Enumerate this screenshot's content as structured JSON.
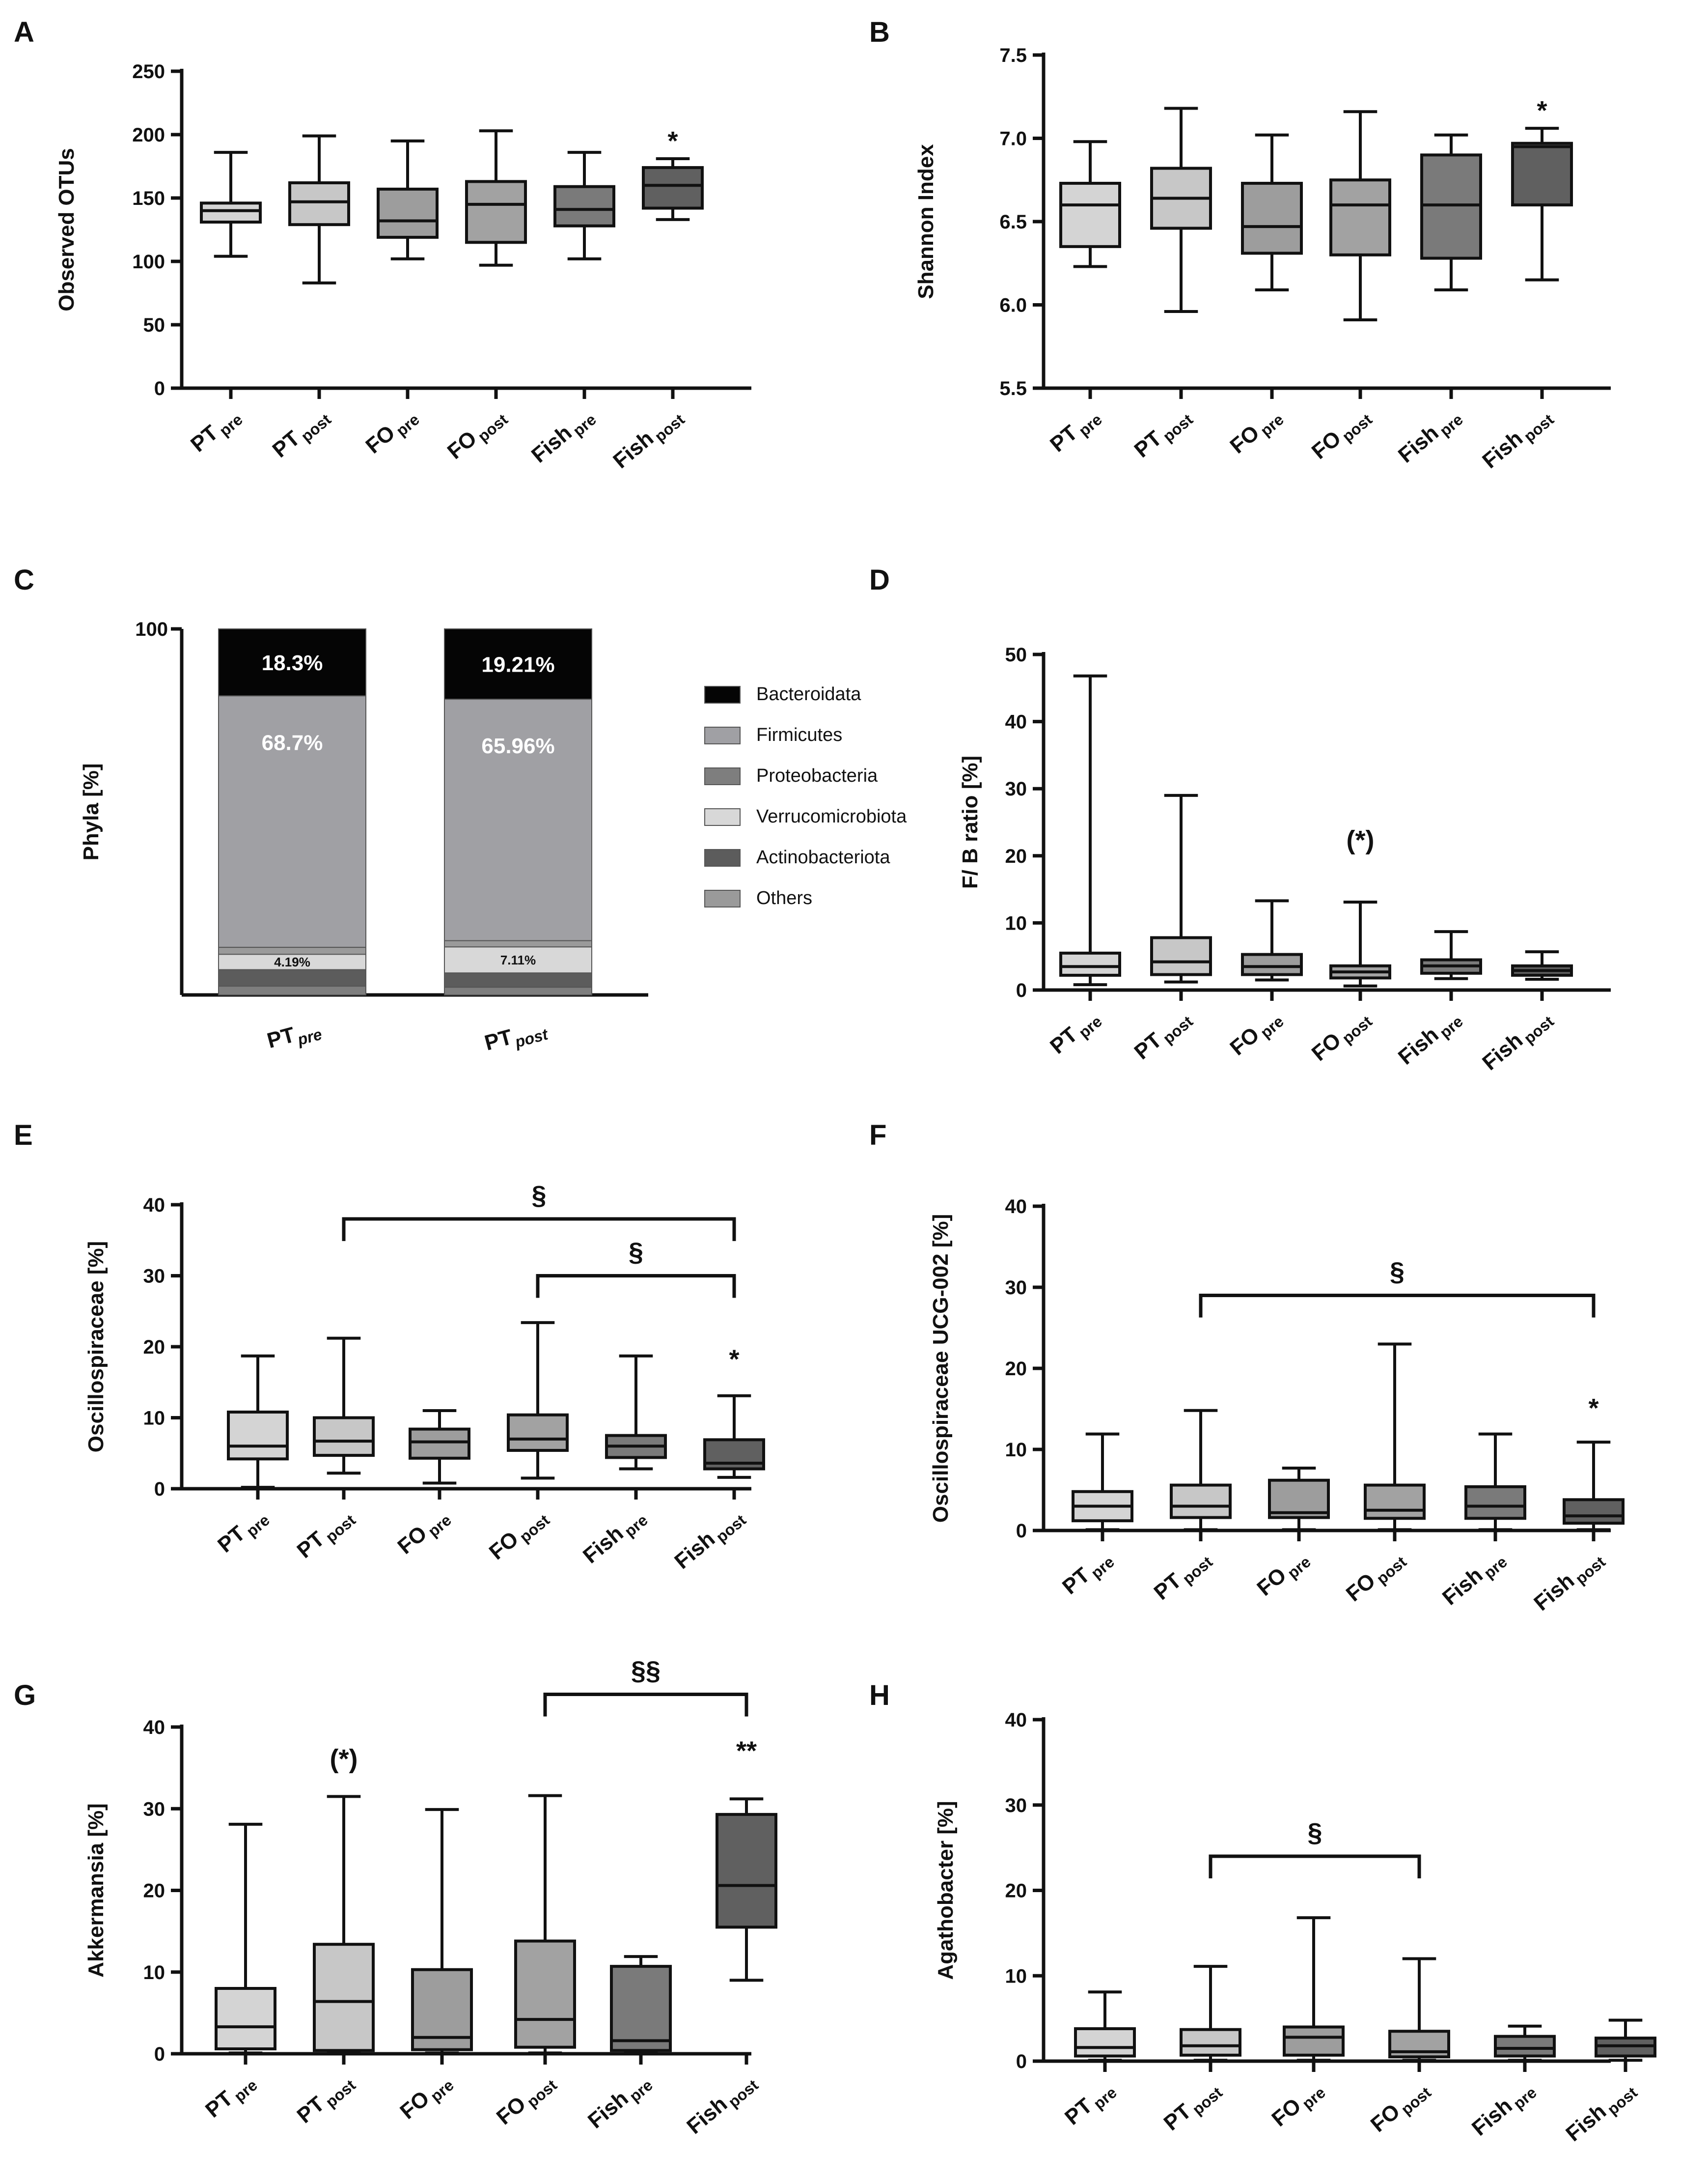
{
  "colors": {
    "pre_pt": "#d4d4d4",
    "post_pt": "#c7c7c7",
    "fo_pre": "#9d9d9d",
    "fo_post": "#a2a2a2",
    "fish_pre": "#7a7a7a",
    "fish_post": "#606060",
    "bacteroidata": "#050505",
    "firmicutes": "#a0a0a4",
    "proteobacteria": "#7e7e7e",
    "verrucomicrobiota": "#d8d8d8",
    "actinobacteriota": "#5c5c5c",
    "others": "#9a9a9a"
  },
  "groups": [
    {
      "main": "PT",
      "sub": "pre"
    },
    {
      "main": "PT",
      "sub": "post"
    },
    {
      "main": "FO",
      "sub": "pre"
    },
    {
      "main": "FO",
      "sub": "post"
    },
    {
      "main": "Fish",
      "sub": "pre"
    },
    {
      "main": "Fish",
      "sub": "post"
    }
  ],
  "chart_data": [
    {
      "panel": "A",
      "type": "boxplot",
      "ylabel": "Observed OTUs",
      "ylim": [
        0,
        250
      ],
      "yticks": [
        "0",
        "50",
        "100",
        "150",
        "200",
        "250"
      ],
      "boxes": [
        {
          "group": "PT pre",
          "min": 104,
          "q1": 131,
          "median": 140,
          "q3": 146,
          "max": 186
        },
        {
          "group": "PT post",
          "min": 83,
          "q1": 129,
          "median": 147,
          "q3": 162,
          "max": 199
        },
        {
          "group": "FO pre",
          "min": 102,
          "q1": 119,
          "median": 132,
          "q3": 157,
          "max": 195
        },
        {
          "group": "FO post",
          "min": 97,
          "q1": 115,
          "median": 145,
          "q3": 163,
          "max": 203
        },
        {
          "group": "Fish pre",
          "min": 102,
          "q1": 128,
          "median": 141,
          "q3": 159,
          "max": 186
        },
        {
          "group": "Fish post",
          "min": 133,
          "q1": 142,
          "median": 160,
          "q3": 174,
          "max": 181
        }
      ],
      "annotations": [
        {
          "group_index": 5,
          "text": "*"
        }
      ],
      "brackets": []
    },
    {
      "panel": "B",
      "type": "boxplot",
      "ylabel": "Shannon Index",
      "ylim": [
        5.5,
        7.5
      ],
      "yticks": [
        "5.5",
        "6.0",
        "6.5",
        "7.0",
        "7.5"
      ],
      "boxes": [
        {
          "group": "PT pre",
          "min": 6.23,
          "q1": 6.35,
          "median": 6.6,
          "q3": 6.73,
          "max": 6.98
        },
        {
          "group": "PT post",
          "min": 5.96,
          "q1": 6.46,
          "median": 6.64,
          "q3": 6.82,
          "max": 7.18
        },
        {
          "group": "FO pre",
          "min": 6.09,
          "q1": 6.31,
          "median": 6.47,
          "q3": 6.73,
          "max": 7.02
        },
        {
          "group": "FO post",
          "min": 5.91,
          "q1": 6.3,
          "median": 6.6,
          "q3": 6.75,
          "max": 7.16
        },
        {
          "group": "Fish pre",
          "min": 6.09,
          "q1": 6.28,
          "median": 6.6,
          "q3": 6.9,
          "max": 7.02
        },
        {
          "group": "Fish post",
          "min": 6.15,
          "q1": 6.6,
          "median": 6.95,
          "q3": 6.97,
          "max": 7.06
        }
      ],
      "annotations": [
        {
          "group_index": 5,
          "text": "*"
        }
      ],
      "brackets": []
    },
    {
      "panel": "C",
      "type": "stacked_bar",
      "ylabel": "Phyla  [%]",
      "ytick": "100",
      "categories": [
        {
          "main": "PT",
          "sub": "pre"
        },
        {
          "main": "PT",
          "sub": "post"
        }
      ],
      "legend": [
        "Bacteroidata",
        "Firmicutes",
        "Proteobacteria",
        "Verrucomicrobiota",
        "Actinobacteriota",
        "Others"
      ],
      "series": [
        {
          "name": "Bacteroidata",
          "values": [
            18.3,
            19.21
          ],
          "labels": [
            "18.3%",
            "19.21%"
          ]
        },
        {
          "name": "Firmicutes",
          "values": [
            68.7,
            65.96
          ],
          "labels": [
            "68.7%",
            "65.96%"
          ]
        },
        {
          "name": "Proteobacteria",
          "values": [
            2.4,
            2.1
          ]
        },
        {
          "name": "Verrucomicrobiota",
          "values": [
            4.19,
            7.11
          ],
          "labels": [
            "4.19%",
            "7.11%"
          ]
        },
        {
          "name": "Actinobacteriota",
          "values": [
            4.5,
            3.9
          ]
        },
        {
          "name": "Others",
          "values": [
            1.91,
            1.72
          ]
        }
      ]
    },
    {
      "panel": "D",
      "type": "boxplot",
      "ylabel": "F/ B ratio [%]",
      "ylim": [
        0,
        50
      ],
      "yticks": [
        "0",
        "10",
        "20",
        "30",
        "40",
        "50"
      ],
      "boxes": [
        {
          "group": "PT pre",
          "min": 0.8,
          "q1": 2.2,
          "median": 3.5,
          "q3": 5.5,
          "max": 46.8
        },
        {
          "group": "PT post",
          "min": 1.2,
          "q1": 2.3,
          "median": 4.2,
          "q3": 7.8,
          "max": 29.0
        },
        {
          "group": "FO pre",
          "min": 1.5,
          "q1": 2.3,
          "median": 3.5,
          "q3": 5.3,
          "max": 13.3
        },
        {
          "group": "FO post",
          "min": 0.6,
          "q1": 1.8,
          "median": 2.7,
          "q3": 3.6,
          "max": 13.1
        },
        {
          "group": "Fish pre",
          "min": 1.7,
          "q1": 2.5,
          "median": 3.6,
          "q3": 4.5,
          "max": 8.7
        },
        {
          "group": "Fish post",
          "min": 1.6,
          "q1": 2.2,
          "median": 2.9,
          "q3": 3.6,
          "max": 5.7
        }
      ],
      "annotations": [
        {
          "group_index": 3,
          "text": "(*)",
          "y": 21
        }
      ],
      "brackets": []
    },
    {
      "panel": "E",
      "type": "boxplot",
      "ylabel": "Oscillospiraceae [%]",
      "ylim": [
        0,
        40
      ],
      "yticks": [
        "0",
        "10",
        "20",
        "30",
        "40"
      ],
      "boxes": [
        {
          "group": "PT pre",
          "min": 0.2,
          "q1": 4.2,
          "median": 6.0,
          "q3": 10.8,
          "max": 18.7
        },
        {
          "group": "PT post",
          "min": 2.2,
          "q1": 4.7,
          "median": 6.7,
          "q3": 10.0,
          "max": 21.2
        },
        {
          "group": "FO pre",
          "min": 0.8,
          "q1": 4.3,
          "median": 6.6,
          "q3": 8.4,
          "max": 11.0
        },
        {
          "group": "FO post",
          "min": 1.5,
          "q1": 5.4,
          "median": 7.0,
          "q3": 10.4,
          "max": 23.4
        },
        {
          "group": "Fish pre",
          "min": 2.8,
          "q1": 4.4,
          "median": 6.0,
          "q3": 7.5,
          "max": 18.7
        },
        {
          "group": "Fish post",
          "min": 1.6,
          "q1": 2.8,
          "median": 3.6,
          "q3": 6.9,
          "max": 13.1
        }
      ],
      "annotations": [
        {
          "group_index": 5,
          "text": "*",
          "y": 17
        }
      ],
      "brackets": [
        {
          "from": 1,
          "to": 5,
          "y": 38,
          "text": "§"
        },
        {
          "from": 3,
          "to": 5,
          "y": 30,
          "text": "§"
        }
      ]
    },
    {
      "panel": "F",
      "type": "boxplot",
      "ylabel": "Oscillospiraceae UCG-002 [%]",
      "ylim": [
        0,
        40
      ],
      "yticks": [
        "0",
        "10",
        "20",
        "30",
        "40"
      ],
      "boxes": [
        {
          "group": "PT pre",
          "min": 0.1,
          "q1": 1.2,
          "median": 3.0,
          "q3": 4.8,
          "max": 11.9
        },
        {
          "group": "PT post",
          "min": 0.1,
          "q1": 1.6,
          "median": 3.0,
          "q3": 5.6,
          "max": 14.8
        },
        {
          "group": "FO pre",
          "min": 0.1,
          "q1": 1.6,
          "median": 2.2,
          "q3": 6.2,
          "max": 7.7
        },
        {
          "group": "FO post",
          "min": 0.1,
          "q1": 1.5,
          "median": 2.5,
          "q3": 5.6,
          "max": 23.0
        },
        {
          "group": "Fish pre",
          "min": 0.1,
          "q1": 1.5,
          "median": 3.0,
          "q3": 5.4,
          "max": 11.9
        },
        {
          "group": "Fish post",
          "min": 0.1,
          "q1": 0.9,
          "median": 1.8,
          "q3": 3.8,
          "max": 10.9
        }
      ],
      "annotations": [
        {
          "group_index": 5,
          "text": "*",
          "y": 14
        }
      ],
      "brackets": [
        {
          "from": 1,
          "to": 5,
          "y": 29,
          "text": "§"
        }
      ]
    },
    {
      "panel": "G",
      "type": "boxplot",
      "ylabel": "Akkermansia [%]",
      "ylim": [
        0,
        40
      ],
      "yticks": [
        "0",
        "10",
        "20",
        "30",
        "40"
      ],
      "boxes": [
        {
          "group": "PT pre",
          "min": 0.1,
          "q1": 0.6,
          "median": 3.3,
          "q3": 8.0,
          "max": 28.1
        },
        {
          "group": "PT post",
          "min": 0.1,
          "q1": 0.4,
          "median": 6.4,
          "q3": 13.4,
          "max": 31.5
        },
        {
          "group": "FO pre",
          "min": 0.1,
          "q1": 0.5,
          "median": 2.0,
          "q3": 10.3,
          "max": 29.9
        },
        {
          "group": "FO post",
          "min": 0.1,
          "q1": 0.8,
          "median": 4.2,
          "q3": 13.8,
          "max": 31.6
        },
        {
          "group": "Fish pre",
          "min": 0.1,
          "q1": 0.4,
          "median": 1.6,
          "q3": 10.7,
          "max": 11.9
        },
        {
          "group": "Fish post",
          "min": 9.0,
          "q1": 15.5,
          "median": 20.6,
          "q3": 29.3,
          "max": 31.2
        }
      ],
      "annotations": [
        {
          "group_index": 1,
          "text": "(*)",
          "y": 35
        },
        {
          "group_index": 5,
          "text": "**",
          "y": 36
        }
      ],
      "brackets": [
        {
          "from": 3,
          "to": 5,
          "y": 44,
          "text": "§§"
        }
      ]
    },
    {
      "panel": "H",
      "type": "boxplot",
      "ylabel": "Agathobacter [%]",
      "ylim": [
        0,
        40
      ],
      "yticks": [
        "0",
        "10",
        "20",
        "30",
        "40"
      ],
      "boxes": [
        {
          "group": "PT pre",
          "min": 0.1,
          "q1": 0.6,
          "median": 1.6,
          "q3": 3.8,
          "max": 8.1
        },
        {
          "group": "PT post",
          "min": 0.1,
          "q1": 0.7,
          "median": 1.8,
          "q3": 3.7,
          "max": 11.1
        },
        {
          "group": "FO pre",
          "min": 0.1,
          "q1": 0.7,
          "median": 2.8,
          "q3": 4.0,
          "max": 16.8
        },
        {
          "group": "FO post",
          "min": 0.1,
          "q1": 0.5,
          "median": 1.1,
          "q3": 3.5,
          "max": 12.0
        },
        {
          "group": "Fish pre",
          "min": 0.1,
          "q1": 0.6,
          "median": 1.5,
          "q3": 2.9,
          "max": 4.1
        },
        {
          "group": "Fish post",
          "min": 0.1,
          "q1": 0.6,
          "median": 1.8,
          "q3": 2.7,
          "max": 4.8
        }
      ],
      "annotations": [],
      "brackets": [
        {
          "from": 1,
          "to": 3,
          "y": 24,
          "text": "§"
        }
      ]
    }
  ]
}
